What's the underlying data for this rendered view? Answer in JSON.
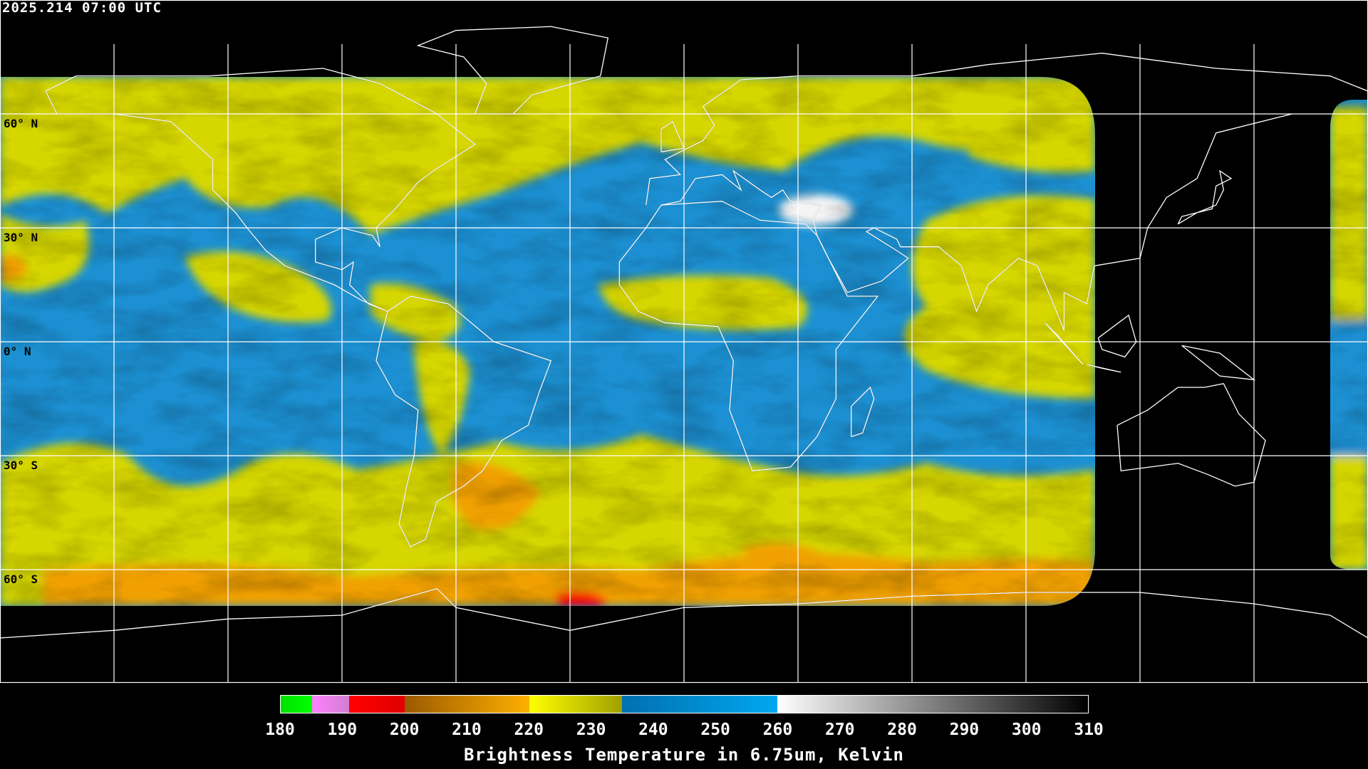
{
  "timestamp": "2025.214 07:00 UTC",
  "lat_labels": [
    "60° N",
    "30° N",
    "0° N",
    "30° S",
    "60° S"
  ],
  "colorbar": {
    "title": "Brightness Temperature in 6.75um, Kelvin",
    "range": [
      180,
      310
    ],
    "ticks": [
      "180",
      "190",
      "200",
      "210",
      "220",
      "230",
      "240",
      "250",
      "260",
      "270",
      "280",
      "290",
      "300",
      "310"
    ],
    "segments": [
      {
        "from": 180,
        "to": 185,
        "colors": [
          "#00e000",
          "#00ff00"
        ]
      },
      {
        "from": 185,
        "to": 191,
        "colors": [
          "#ff80ff",
          "#d080d0"
        ]
      },
      {
        "from": 191,
        "to": 200,
        "colors": [
          "#ff0000",
          "#e00000"
        ]
      },
      {
        "from": 200,
        "to": 220,
        "colors": [
          "#9a5a00",
          "#ffb000"
        ]
      },
      {
        "from": 220,
        "to": 235,
        "colors": [
          "#ffff00",
          "#a0a000"
        ]
      },
      {
        "from": 235,
        "to": 260,
        "colors": [
          "#0070b0",
          "#00a8f0"
        ]
      },
      {
        "from": 260,
        "to": 310,
        "colors": [
          "#ffffff",
          "#000000"
        ]
      }
    ]
  },
  "colors": {
    "vapor_blue": "#1c90d2",
    "yellow": "#d6d600",
    "orange": "#f0a000",
    "red": "#ff0000",
    "grid": "#ffffff"
  }
}
